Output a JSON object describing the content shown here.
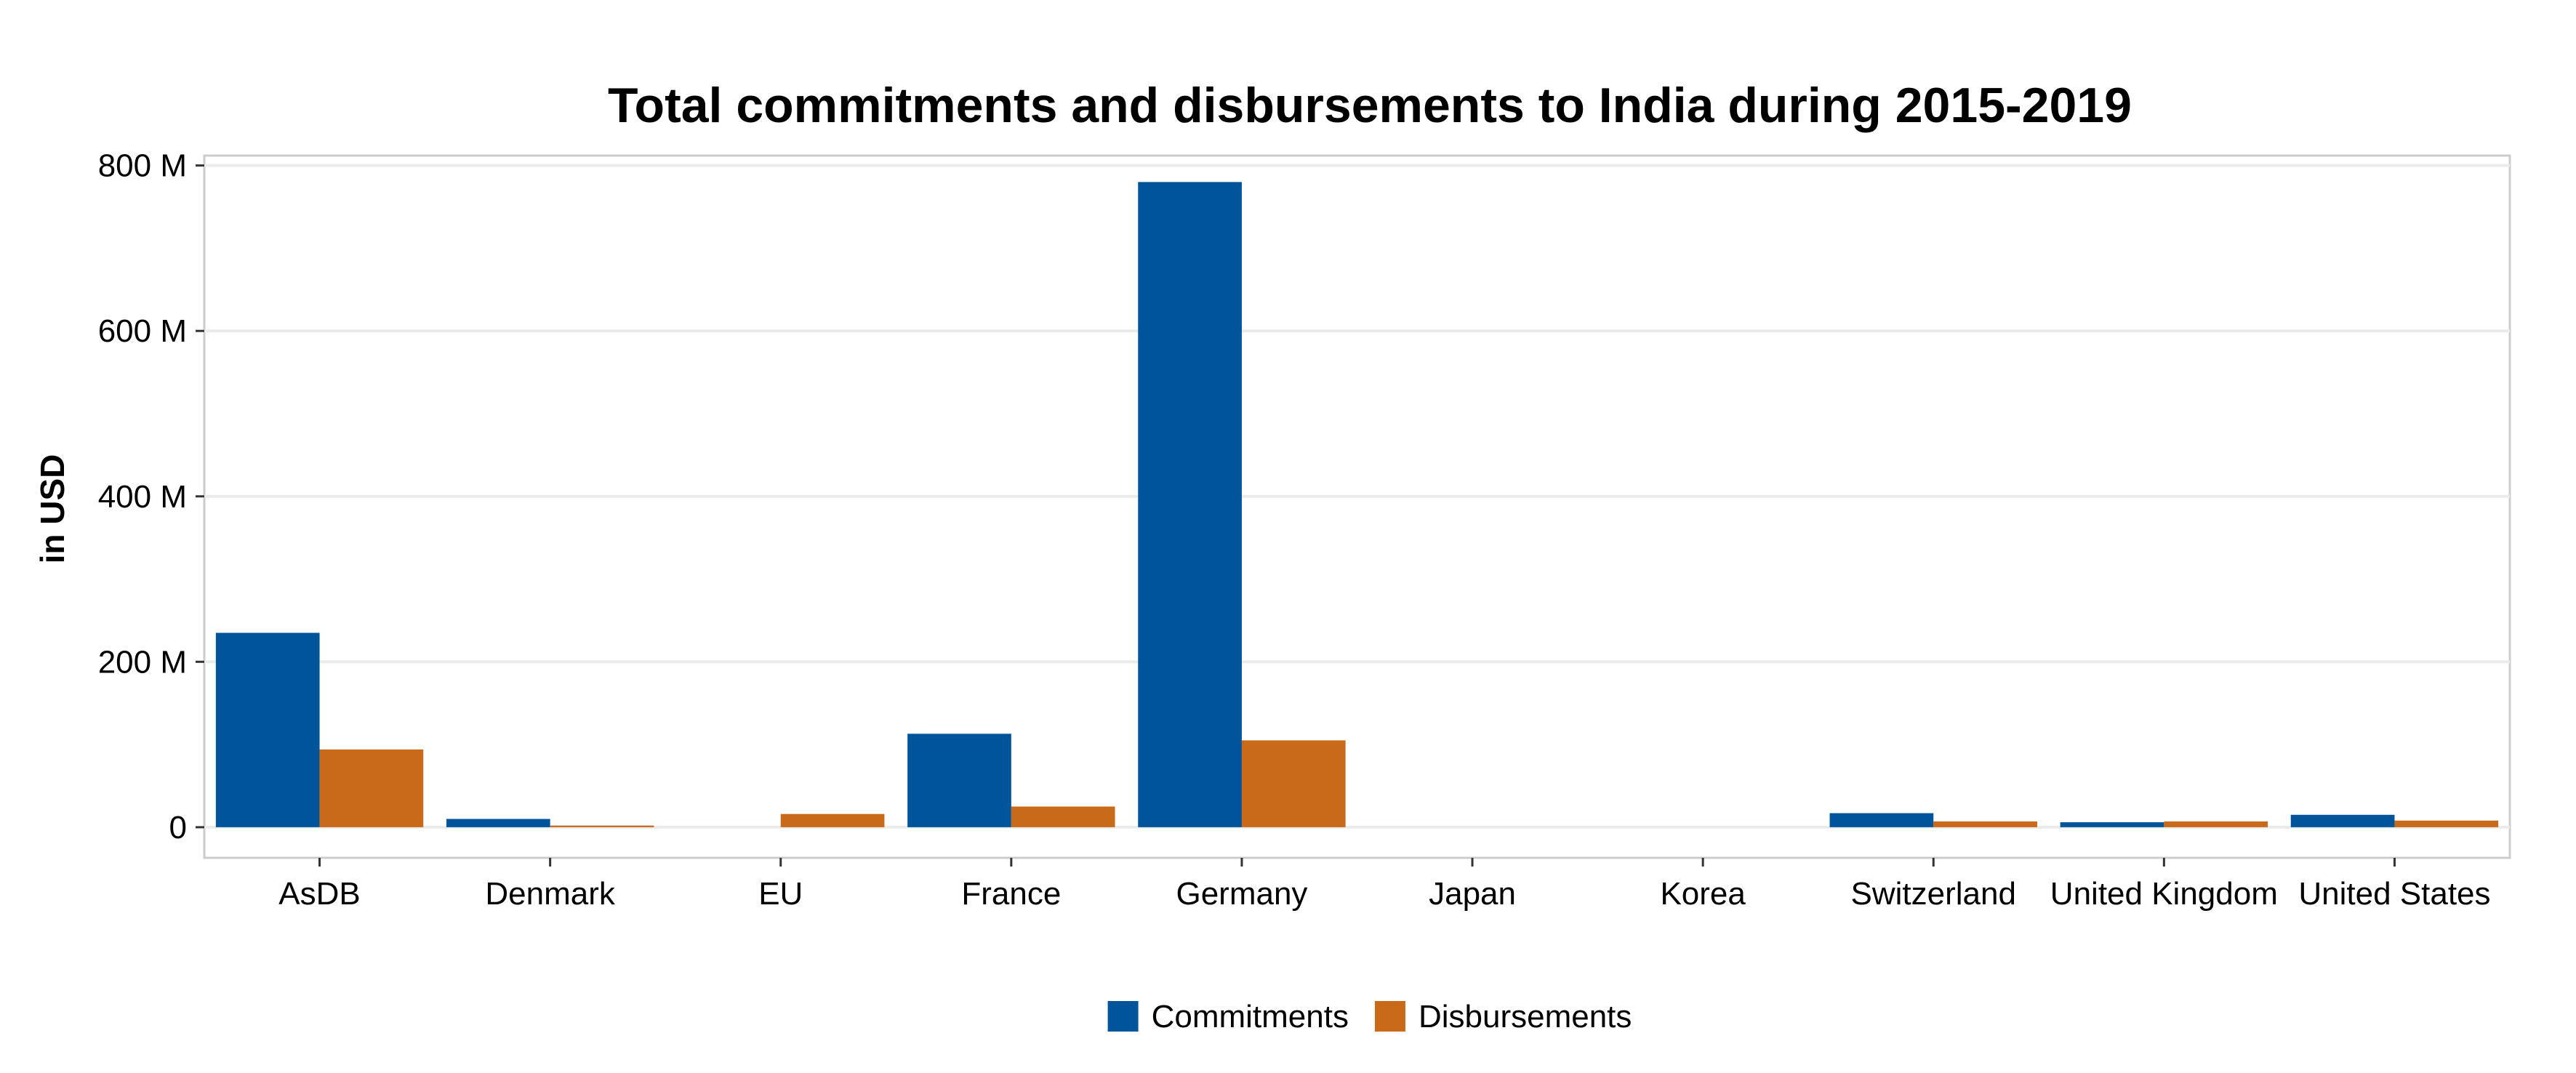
{
  "chart_data": {
    "type": "bar",
    "title": "Total commitments and disbursements to India during 2015-2019",
    "xlabel": "",
    "ylabel": "in USD",
    "categories": [
      "AsDB",
      "Denmark",
      "EU",
      "France",
      "Germany",
      "Japan",
      "Korea",
      "Switzerland",
      "United Kingdom",
      "United States"
    ],
    "series": [
      {
        "name": "Commitments",
        "color": "#00559A",
        "values": [
          235,
          10,
          0,
          113,
          780,
          0,
          0,
          17,
          6,
          15
        ]
      },
      {
        "name": "Disbursements",
        "color": "#C96A1B",
        "values": [
          94,
          2,
          16,
          25,
          105,
          0,
          0,
          7,
          7,
          8
        ]
      }
    ],
    "ylim": [
      -37,
      812
    ],
    "yticks": [
      0,
      200,
      400,
      600,
      800
    ],
    "ytick_labels": [
      "0",
      "200 M",
      "400 M",
      "600 M",
      "800 M"
    ],
    "value_unit": "million USD",
    "grid": true,
    "legend_position": "bottom"
  }
}
